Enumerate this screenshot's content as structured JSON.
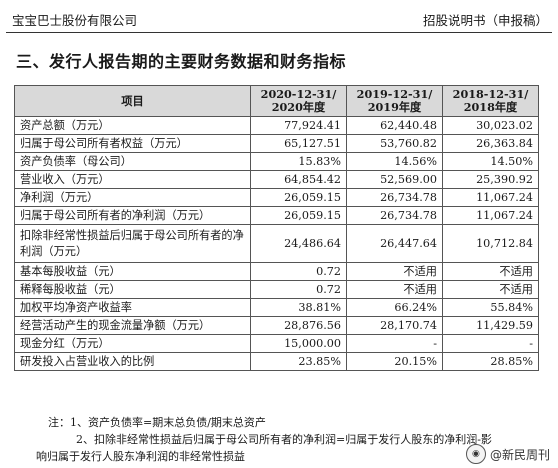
{
  "header": {
    "company": "宝宝巴士股份有限公司",
    "doc": "招股说明书（申报稿）"
  },
  "section_title": "三、发行人报告期的主要财务数据和财务指标",
  "table": {
    "columns": [
      {
        "l1": "项目",
        "l2": ""
      },
      {
        "l1": "2020-12-31/",
        "l2": "2020年度"
      },
      {
        "l1": "2019-12-31/",
        "l2": "2019年度"
      },
      {
        "l1": "2018-12-31/",
        "l2": "2018年度"
      }
    ],
    "rows": [
      {
        "label": "资产总额（万元）",
        "v2020": "77,924.41",
        "v2019": "62,440.48",
        "v2018": "30,023.02"
      },
      {
        "label": "归属于母公司所有者权益（万元）",
        "v2020": "65,127.51",
        "v2019": "53,760.82",
        "v2018": "26,363.84"
      },
      {
        "label": "资产负债率（母公司）",
        "v2020": "15.83%",
        "v2019": "14.56%",
        "v2018": "14.50%"
      },
      {
        "label": "营业收入（万元）",
        "v2020": "64,854.42",
        "v2019": "52,569.00",
        "v2018": "25,390.92"
      },
      {
        "label": "净利润（万元）",
        "v2020": "26,059.15",
        "v2019": "26,734.78",
        "v2018": "11,067.24"
      },
      {
        "label": "归属于母公司所有者的净利润（万元）",
        "v2020": "26,059.15",
        "v2019": "26,734.78",
        "v2018": "11,067.24"
      },
      {
        "label": "扣除非经常性损益后归属于母公司所有者的净利润（万元）",
        "v2020": "24,486.64",
        "v2019": "26,447.64",
        "v2018": "10,712.84"
      },
      {
        "label": "基本每股收益（元）",
        "v2020": "0.72",
        "v2019": "不适用",
        "v2018": "不适用"
      },
      {
        "label": "稀释每股收益（元）",
        "v2020": "0.72",
        "v2019": "不适用",
        "v2018": "不适用"
      },
      {
        "label": "加权平均净资产收益率",
        "v2020": "38.81%",
        "v2019": "66.24%",
        "v2018": "55.84%"
      },
      {
        "label": "经营活动产生的现金流量净额（万元）",
        "v2020": "28,876.56",
        "v2019": "28,170.74",
        "v2018": "11,429.59"
      },
      {
        "label": "现金分红（万元）",
        "v2020": "15,000.00",
        "v2019": "-",
        "v2018": "-"
      },
      {
        "label": "研发投入占营业收入的比例",
        "v2020": "23.85%",
        "v2019": "20.15%",
        "v2018": "28.85%"
      }
    ]
  },
  "notes": {
    "n1": "注：1、资产负债率=期末总负债/期末总资产",
    "n2": "2、扣除非经常性损益后归属于母公司所有者的净利润=归属于发行人股东的净利润-影",
    "n3": "响归属于发行人股东净利润的非经常性损益"
  },
  "watermark": {
    "icon": "wechat-logo-icon",
    "text": "@新民周刊"
  }
}
